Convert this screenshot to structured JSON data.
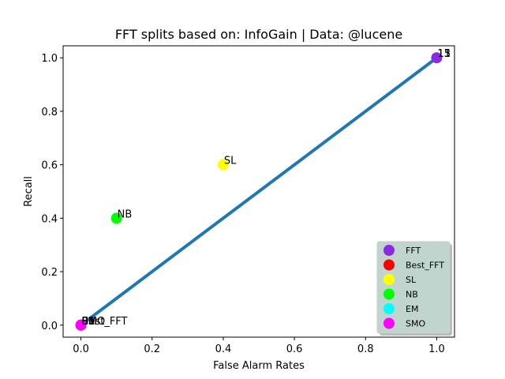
{
  "chart_data": {
    "type": "scatter",
    "title": "FFT splits based on: InfoGain  |  Data: @lucene",
    "xlabel": "False Alarm Rates",
    "ylabel": "Recall",
    "xlim": [
      -0.05,
      1.05
    ],
    "ylim": [
      -0.045,
      1.045
    ],
    "xticks": [
      0.0,
      0.2,
      0.4,
      0.6,
      0.8,
      1.0
    ],
    "yticks": [
      0.0,
      0.2,
      0.4,
      0.6,
      0.8,
      1.0
    ],
    "xtick_labels": [
      "0.0",
      "0.2",
      "0.4",
      "0.6",
      "0.8",
      "1.0"
    ],
    "ytick_labels": [
      "0.0",
      "0.2",
      "0.4",
      "0.6",
      "0.8",
      "1.0"
    ],
    "grid": false,
    "legend_position": "lower-right",
    "line": {
      "color": "#1f77b4",
      "x": [
        0.0,
        1.0
      ],
      "y": [
        0.0,
        1.0
      ]
    },
    "series": [
      {
        "name": "FFT",
        "color": "#8a2be2",
        "points": [
          {
            "x": 1.0,
            "y": 1.0
          },
          {
            "x": 0.0,
            "y": 0.0
          }
        ]
      },
      {
        "name": "Best_FFT",
        "color": "#ff0000",
        "points": [
          {
            "x": 0.0,
            "y": 0.0
          }
        ]
      },
      {
        "name": "SL",
        "color": "#ffff00",
        "points": [
          {
            "x": 0.4,
            "y": 0.6
          }
        ]
      },
      {
        "name": "NB",
        "color": "#00ff00",
        "points": [
          {
            "x": 0.1,
            "y": 0.4
          }
        ]
      },
      {
        "name": "EM",
        "color": "#00ffff",
        "points": [
          {
            "x": 0.0,
            "y": 0.0
          }
        ]
      },
      {
        "name": "SMO",
        "color": "#ff00ff",
        "points": [
          {
            "x": 0.0,
            "y": 0.0
          }
        ]
      }
    ],
    "annotations": [
      {
        "text": "SL",
        "x": 0.4,
        "y": 0.6
      },
      {
        "text": "NB",
        "x": 0.1,
        "y": 0.4
      },
      {
        "text": "Best_FFT",
        "x": 0.0,
        "y": 0.0
      },
      {
        "text": "EM",
        "x": 0.0,
        "y": 0.0
      },
      {
        "text": "SMO",
        "x": 0.0,
        "y": 0.0
      },
      {
        "text": "11",
        "x": 1.0,
        "y": 1.0
      },
      {
        "text": "13",
        "x": 1.0,
        "y": 1.0
      },
      {
        "text": "15",
        "x": 1.0,
        "y": 1.0
      },
      {
        "text": "01",
        "x": 0.0,
        "y": 0.0
      },
      {
        "text": "03",
        "x": 0.0,
        "y": 0.0
      },
      {
        "text": "05",
        "x": 0.0,
        "y": 0.0
      }
    ]
  }
}
